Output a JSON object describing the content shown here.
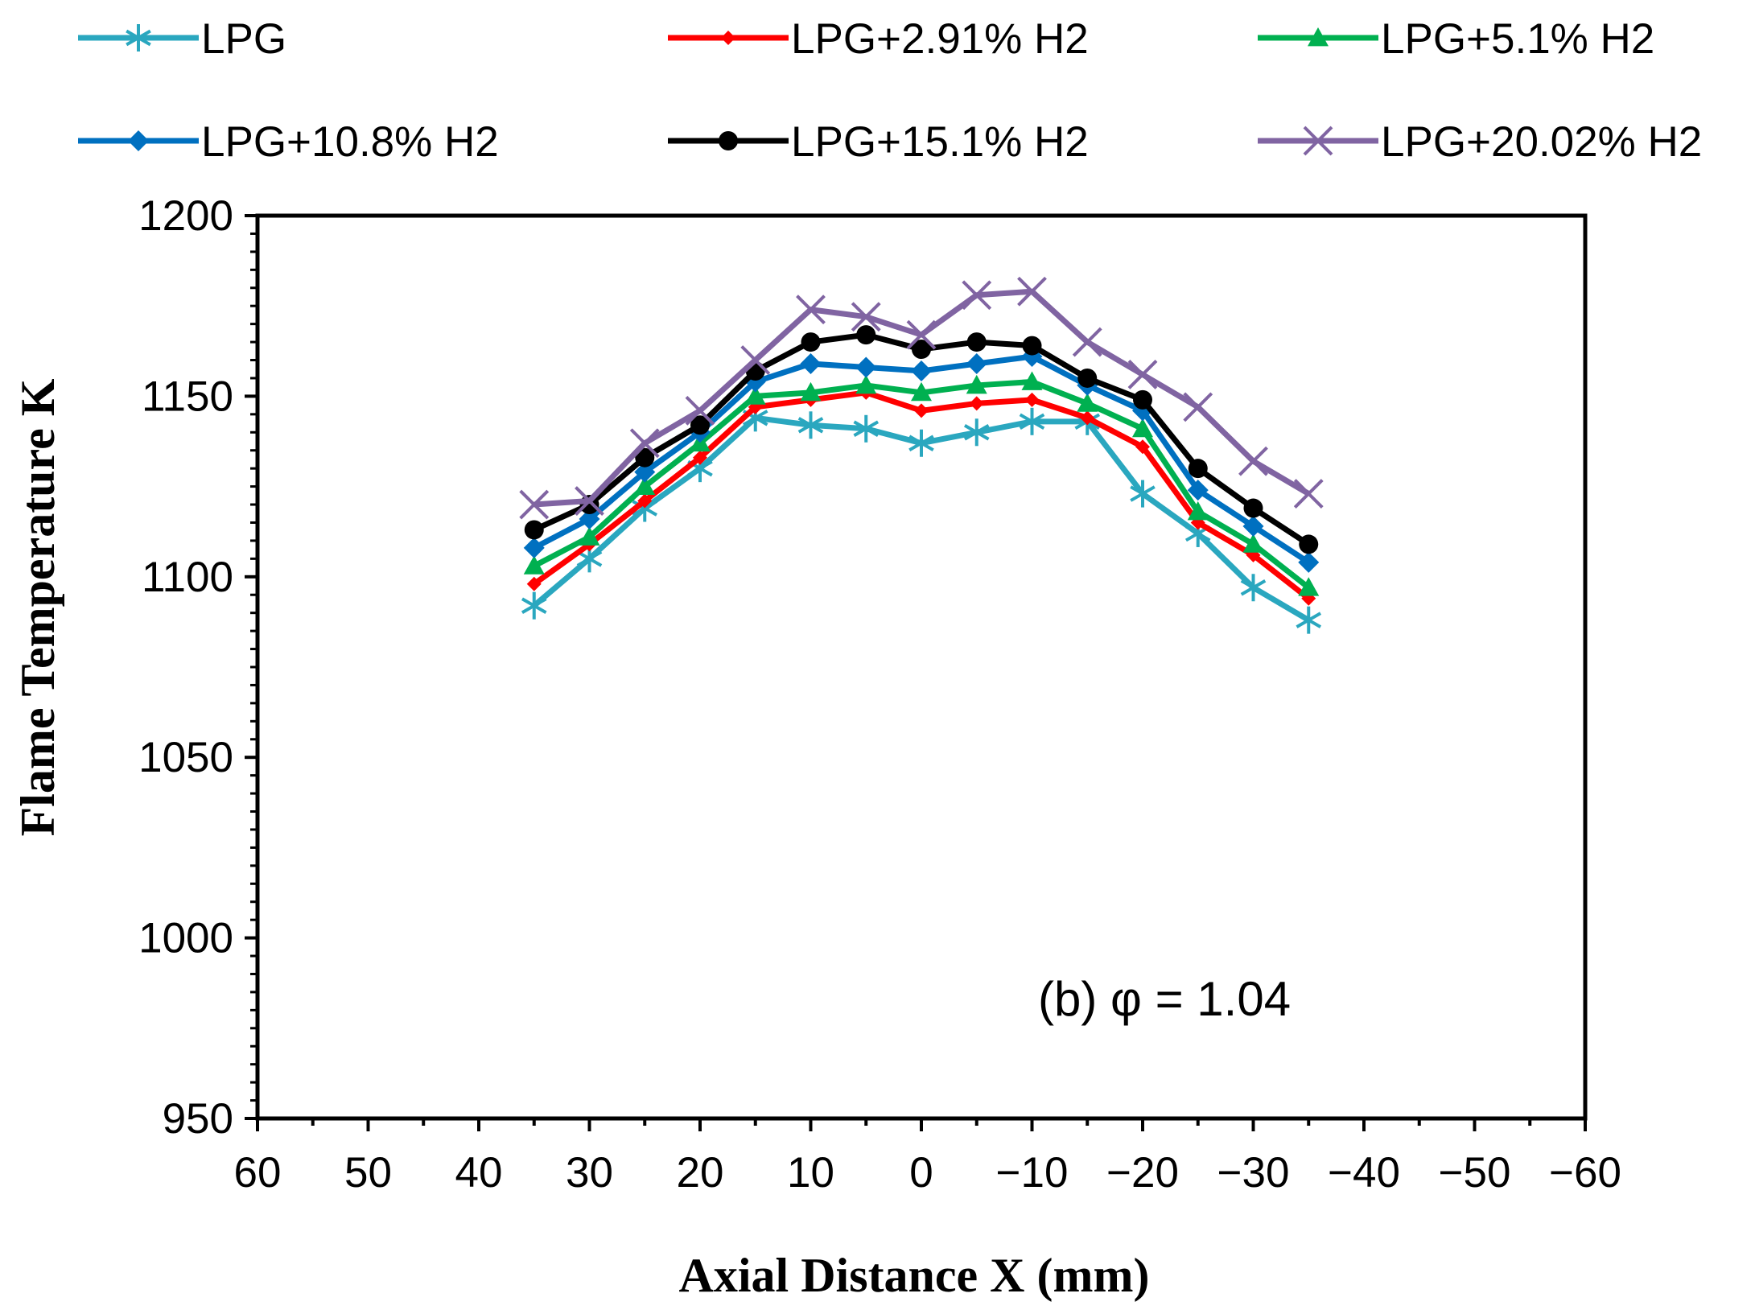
{
  "chart_data": {
    "type": "line",
    "xlabel": "Axial Distance X (mm)",
    "ylabel": "Flame Temperature K",
    "annotation": "(b) φ = 1.04",
    "xlim": [
      60,
      -60
    ],
    "ylim": [
      950,
      1200
    ],
    "xticks": [
      "60",
      "50",
      "40",
      "30",
      "20",
      "10",
      "0",
      "−10",
      "−20",
      "−30",
      "−40",
      "−50",
      "−60"
    ],
    "yticks": [
      "950",
      "1000",
      "1050",
      "1100",
      "1150",
      "1200"
    ],
    "legend_position": "top",
    "x": [
      35,
      30,
      25,
      20,
      15,
      10,
      5,
      0,
      -5,
      -10,
      -15,
      -20,
      -25,
      -30,
      -35
    ],
    "series": [
      {
        "name": "LPG",
        "color": "#2aa7bf",
        "marker": "asterisk",
        "values": [
          1092,
          1105,
          1119,
          1130,
          1144,
          1142,
          1141,
          1137,
          1140,
          1143,
          1143,
          1123,
          1112,
          1097,
          1088
        ]
      },
      {
        "name": "LPG+2.91% H2",
        "color": "#ff0000",
        "marker": "small-diamond",
        "values": [
          1098,
          1109,
          1121,
          1133,
          1147,
          1149,
          1151,
          1146,
          1148,
          1149,
          1144,
          1136,
          1115,
          1106,
          1094
        ]
      },
      {
        "name": "LPG+5.1% H2",
        "color": "#00b050",
        "marker": "triangle",
        "values": [
          1103,
          1111,
          1125,
          1137,
          1150,
          1151,
          1153,
          1151,
          1153,
          1154,
          1148,
          1141,
          1118,
          1109,
          1097
        ]
      },
      {
        "name": "LPG+10.8% H2",
        "color": "#0070c0",
        "marker": "diamond",
        "values": [
          1108,
          1116,
          1129,
          1140,
          1154,
          1159,
          1158,
          1157,
          1159,
          1161,
          1153,
          1146,
          1124,
          1114,
          1104
        ]
      },
      {
        "name": "LPG+15.1% H2",
        "color": "#000000",
        "marker": "circle",
        "values": [
          1113,
          1120,
          1133,
          1142,
          1157,
          1165,
          1167,
          1163,
          1165,
          1164,
          1155,
          1149,
          1130,
          1119,
          1109
        ]
      },
      {
        "name": "LPG+20.02% H2",
        "color": "#8064a2",
        "marker": "x",
        "values": [
          1120,
          1121,
          1137,
          1146,
          1160,
          1174,
          1172,
          1167,
          1178,
          1179,
          1165,
          1156,
          1147,
          1132,
          1123
        ]
      }
    ]
  }
}
